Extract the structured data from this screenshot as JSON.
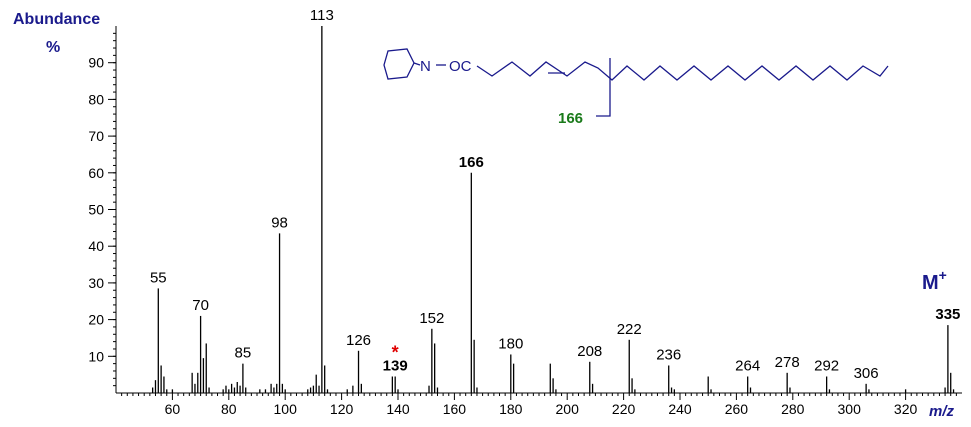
{
  "chart_data": {
    "type": "bar",
    "subtype": "mass-spectrum",
    "title": "",
    "ylabel": "Abundance",
    "ylabel_unit": "%",
    "xlabel": "m/z",
    "xlim": [
      40,
      340
    ],
    "ylim": [
      0,
      100
    ],
    "xticks": [
      60,
      80,
      100,
      120,
      140,
      160,
      180,
      200,
      220,
      240,
      260,
      280,
      300,
      320
    ],
    "yticks": [
      10,
      20,
      30,
      40,
      50,
      60,
      70,
      80,
      90
    ],
    "colors": {
      "axis_text": "#1a1a8c",
      "bars": "#000000",
      "highlight_166": "#1a7a1a",
      "highlight_139": "#1a8ac8",
      "asterisk": "#e00000",
      "structure": "#1a1a8c"
    },
    "peaks": [
      {
        "mz": 53,
        "rel": 1.5
      },
      {
        "mz": 54,
        "rel": 3.5
      },
      {
        "mz": 55,
        "rel": 28.5
      },
      {
        "mz": 56,
        "rel": 7.5
      },
      {
        "mz": 57,
        "rel": 4.5
      },
      {
        "mz": 58,
        "rel": 1
      },
      {
        "mz": 60,
        "rel": 1
      },
      {
        "mz": 67,
        "rel": 5.5
      },
      {
        "mz": 68,
        "rel": 2.5
      },
      {
        "mz": 69,
        "rel": 5.5
      },
      {
        "mz": 70,
        "rel": 21
      },
      {
        "mz": 71,
        "rel": 9.5
      },
      {
        "mz": 72,
        "rel": 13.5
      },
      {
        "mz": 73,
        "rel": 1.5
      },
      {
        "mz": 78,
        "rel": 1
      },
      {
        "mz": 79,
        "rel": 2
      },
      {
        "mz": 80,
        "rel": 1
      },
      {
        "mz": 81,
        "rel": 2.5
      },
      {
        "mz": 82,
        "rel": 1.5
      },
      {
        "mz": 83,
        "rel": 3
      },
      {
        "mz": 84,
        "rel": 2
      },
      {
        "mz": 85,
        "rel": 8
      },
      {
        "mz": 86,
        "rel": 1.5
      },
      {
        "mz": 91,
        "rel": 1
      },
      {
        "mz": 93,
        "rel": 1
      },
      {
        "mz": 95,
        "rel": 2.5
      },
      {
        "mz": 96,
        "rel": 1.5
      },
      {
        "mz": 97,
        "rel": 2.5
      },
      {
        "mz": 98,
        "rel": 43.5
      },
      {
        "mz": 99,
        "rel": 2.5
      },
      {
        "mz": 100,
        "rel": 1
      },
      {
        "mz": 108,
        "rel": 1
      },
      {
        "mz": 109,
        "rel": 1.5
      },
      {
        "mz": 110,
        "rel": 2
      },
      {
        "mz": 111,
        "rel": 5
      },
      {
        "mz": 112,
        "rel": 2
      },
      {
        "mz": 113,
        "rel": 100
      },
      {
        "mz": 114,
        "rel": 7.5
      },
      {
        "mz": 115,
        "rel": 1
      },
      {
        "mz": 122,
        "rel": 1
      },
      {
        "mz": 124,
        "rel": 2
      },
      {
        "mz": 126,
        "rel": 11.5
      },
      {
        "mz": 127,
        "rel": 2.5
      },
      {
        "mz": 138,
        "rel": 4.5
      },
      {
        "mz": 139,
        "rel": 4.5
      },
      {
        "mz": 140,
        "rel": 1
      },
      {
        "mz": 151,
        "rel": 2
      },
      {
        "mz": 152,
        "rel": 17.5
      },
      {
        "mz": 153,
        "rel": 13.5
      },
      {
        "mz": 154,
        "rel": 1.5
      },
      {
        "mz": 166,
        "rel": 60
      },
      {
        "mz": 167,
        "rel": 14.5
      },
      {
        "mz": 168,
        "rel": 1.5
      },
      {
        "mz": 180,
        "rel": 10.5
      },
      {
        "mz": 181,
        "rel": 8
      },
      {
        "mz": 194,
        "rel": 8
      },
      {
        "mz": 195,
        "rel": 4
      },
      {
        "mz": 196,
        "rel": 1
      },
      {
        "mz": 208,
        "rel": 8.5
      },
      {
        "mz": 209,
        "rel": 2.5
      },
      {
        "mz": 222,
        "rel": 14.5
      },
      {
        "mz": 223,
        "rel": 4
      },
      {
        "mz": 224,
        "rel": 1
      },
      {
        "mz": 236,
        "rel": 7.5
      },
      {
        "mz": 237,
        "rel": 1.5
      },
      {
        "mz": 238,
        "rel": 1
      },
      {
        "mz": 250,
        "rel": 4.5
      },
      {
        "mz": 251,
        "rel": 1
      },
      {
        "mz": 264,
        "rel": 4.5
      },
      {
        "mz": 265,
        "rel": 1.5
      },
      {
        "mz": 278,
        "rel": 5.5
      },
      {
        "mz": 279,
        "rel": 1.5
      },
      {
        "mz": 292,
        "rel": 4.5
      },
      {
        "mz": 293,
        "rel": 1
      },
      {
        "mz": 306,
        "rel": 2.5
      },
      {
        "mz": 307,
        "rel": 1
      },
      {
        "mz": 320,
        "rel": 1
      },
      {
        "mz": 334,
        "rel": 1.5
      },
      {
        "mz": 335,
        "rel": 18.5
      },
      {
        "mz": 336,
        "rel": 5.5
      },
      {
        "mz": 337,
        "rel": 1
      }
    ],
    "peak_labels": [
      {
        "mz": 55,
        "text": "55",
        "color": "bars"
      },
      {
        "mz": 70,
        "text": "70",
        "color": "bars"
      },
      {
        "mz": 85,
        "text": "85",
        "color": "bars"
      },
      {
        "mz": 98,
        "text": "98",
        "color": "bars"
      },
      {
        "mz": 113,
        "text": "113",
        "color": "bars"
      },
      {
        "mz": 126,
        "text": "126",
        "color": "bars"
      },
      {
        "mz": 139,
        "text": "139",
        "color": "highlight_139",
        "bold": true
      },
      {
        "mz": 152,
        "text": "152",
        "color": "bars"
      },
      {
        "mz": 166,
        "text": "166",
        "color": "highlight_166",
        "bold": true
      },
      {
        "mz": 180,
        "text": "180",
        "color": "bars"
      },
      {
        "mz": 208,
        "text": "208",
        "color": "bars"
      },
      {
        "mz": 222,
        "text": "222",
        "color": "bars"
      },
      {
        "mz": 236,
        "text": "236",
        "color": "bars"
      },
      {
        "mz": 264,
        "text": "264",
        "color": "bars"
      },
      {
        "mz": 278,
        "text": "278",
        "color": "bars"
      },
      {
        "mz": 292,
        "text": "292",
        "color": "bars"
      },
      {
        "mz": 306,
        "text": "306",
        "color": "bars"
      },
      {
        "mz": 335,
        "text": "335",
        "color": "structure",
        "bold": true
      }
    ],
    "annotations": {
      "asterisk": "*",
      "asterisk_mz": 139,
      "molecular_ion_label": "M",
      "molecular_ion_superscript": "+",
      "structure_amine": "N",
      "structure_acyl": "OC",
      "structure_cleavage_label": "166"
    }
  }
}
